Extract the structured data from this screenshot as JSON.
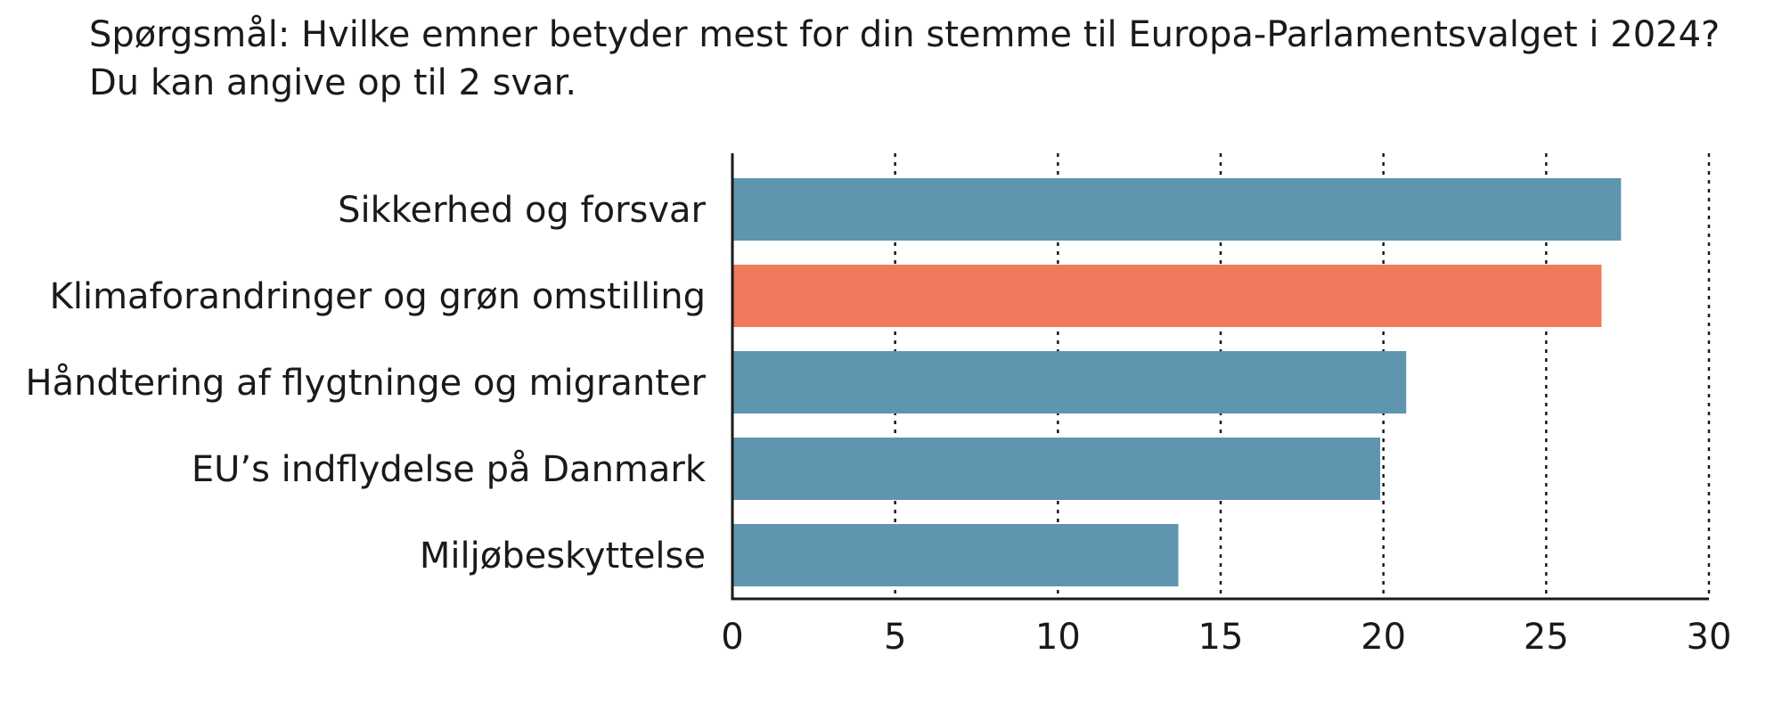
{
  "chart_data": {
    "type": "bar",
    "orientation": "horizontal",
    "title": "Spørgsmål: Hvilke emner betyder mest for din stemme til Europa-Parlamentsvalget i 2024?",
    "subtitle": "Du kan angive op til 2 svar.",
    "categories": [
      "Sikkerhed og forsvar",
      "Klimaforandringer og grøn omstilling",
      "Håndtering af flygtninge og migranter",
      "EU’s indflydelse på Danmark",
      "Miljøbeskyttelse"
    ],
    "values": [
      27.3,
      26.7,
      20.7,
      19.9,
      13.7
    ],
    "bar_colors": [
      "#5f95ae",
      "#ee795b",
      "#5f95ae",
      "#5f95ae",
      "#5f95ae"
    ],
    "xlim": [
      0,
      30
    ],
    "x_ticks": [
      "0",
      "5",
      "10",
      "15",
      "20",
      "25",
      "30"
    ],
    "grid": "vertical dotted",
    "xlabel": "",
    "ylabel": ""
  }
}
